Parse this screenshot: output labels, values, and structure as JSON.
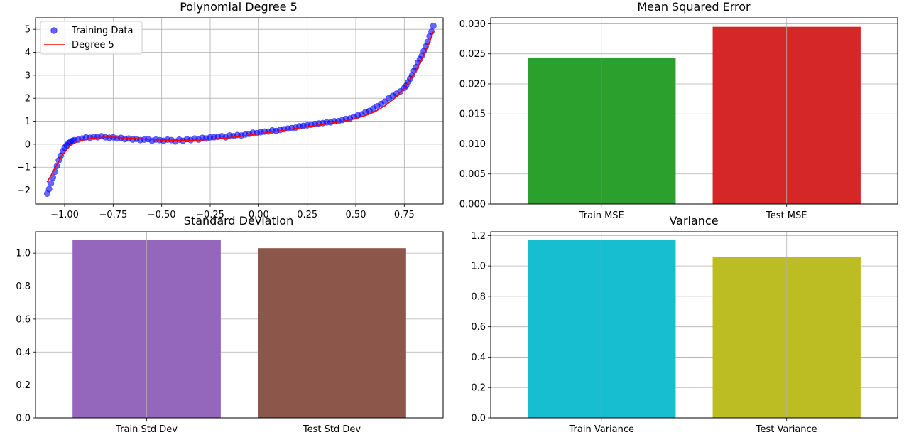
{
  "chart_data": [
    {
      "type": "scatter",
      "title": "Polynomial Degree 5",
      "xlabel": "",
      "ylabel": "",
      "xlim": [
        -1.15,
        0.95
      ],
      "ylim": [
        -2.6,
        5.5
      ],
      "xticks": [
        -1.0,
        -0.75,
        -0.5,
        -0.25,
        0.0,
        0.25,
        0.5,
        0.75
      ],
      "xtick_labels": [
        "−1.00",
        "−0.75",
        "−0.50",
        "−0.25",
        "0.00",
        "0.25",
        "0.50",
        "0.75"
      ],
      "yticks": [
        -2,
        -1,
        0,
        1,
        2,
        3,
        4,
        5
      ],
      "ytick_labels": [
        "−2",
        "−1",
        "0",
        "1",
        "2",
        "3",
        "4",
        "5"
      ],
      "grid": true,
      "legend_position": "top-left",
      "series": [
        {
          "name": "Training Data",
          "kind": "scatter",
          "color": "#0000ff",
          "x": [
            -1.09,
            -1.08,
            -1.07,
            -1.06,
            -1.05,
            -1.04,
            -1.03,
            -1.02,
            -1.01,
            -1.0,
            -0.99,
            -0.98,
            -0.97,
            -0.96,
            -0.95,
            -0.93,
            -0.91,
            -0.89,
            -0.87,
            -0.85,
            -0.83,
            -0.81,
            -0.79,
            -0.77,
            -0.75,
            -0.73,
            -0.71,
            -0.69,
            -0.67,
            -0.65,
            -0.63,
            -0.61,
            -0.59,
            -0.57,
            -0.55,
            -0.53,
            -0.51,
            -0.49,
            -0.47,
            -0.45,
            -0.43,
            -0.41,
            -0.39,
            -0.37,
            -0.35,
            -0.33,
            -0.31,
            -0.29,
            -0.27,
            -0.25,
            -0.23,
            -0.21,
            -0.19,
            -0.17,
            -0.15,
            -0.13,
            -0.11,
            -0.09,
            -0.07,
            -0.05,
            -0.03,
            -0.01,
            0.01,
            0.03,
            0.05,
            0.07,
            0.09,
            0.11,
            0.13,
            0.15,
            0.17,
            0.19,
            0.21,
            0.23,
            0.25,
            0.27,
            0.29,
            0.31,
            0.33,
            0.35,
            0.37,
            0.39,
            0.41,
            0.43,
            0.45,
            0.47,
            0.49,
            0.51,
            0.53,
            0.55,
            0.57,
            0.59,
            0.61,
            0.63,
            0.65,
            0.67,
            0.69,
            0.71,
            0.73,
            0.75,
            0.76,
            0.77,
            0.78,
            0.79,
            0.8,
            0.81,
            0.82,
            0.83,
            0.84,
            0.85,
            0.86,
            0.87,
            0.88,
            0.89,
            0.9
          ],
          "y": [
            -2.15,
            -1.95,
            -1.7,
            -1.45,
            -1.2,
            -0.95,
            -0.7,
            -0.5,
            -0.3,
            -0.15,
            -0.05,
            0.05,
            0.1,
            0.15,
            0.18,
            0.2,
            0.25,
            0.3,
            0.28,
            0.32,
            0.3,
            0.35,
            0.3,
            0.28,
            0.3,
            0.25,
            0.28,
            0.22,
            0.25,
            0.2,
            0.23,
            0.18,
            0.2,
            0.22,
            0.15,
            0.2,
            0.18,
            0.15,
            0.2,
            0.18,
            0.12,
            0.2,
            0.15,
            0.22,
            0.18,
            0.25,
            0.2,
            0.28,
            0.25,
            0.3,
            0.3,
            0.32,
            0.35,
            0.3,
            0.38,
            0.35,
            0.4,
            0.38,
            0.42,
            0.45,
            0.5,
            0.48,
            0.52,
            0.55,
            0.55,
            0.6,
            0.58,
            0.62,
            0.65,
            0.68,
            0.7,
            0.72,
            0.78,
            0.8,
            0.82,
            0.85,
            0.88,
            0.9,
            0.92,
            0.95,
            0.95,
            1.0,
            1.0,
            1.05,
            1.1,
            1.12,
            1.2,
            1.25,
            1.3,
            1.4,
            1.45,
            1.55,
            1.65,
            1.75,
            1.85,
            2.0,
            2.1,
            2.2,
            2.3,
            2.45,
            2.55,
            2.7,
            2.85,
            3.0,
            3.2,
            3.35,
            3.55,
            3.7,
            3.85,
            4.05,
            4.25,
            4.45,
            4.7,
            4.9,
            5.15
          ]
        },
        {
          "name": "Degree 5",
          "kind": "line",
          "color": "#ff0000",
          "x": [
            -1.09,
            -1.05,
            -1.01,
            -0.97,
            -0.93,
            -0.89,
            -0.85,
            -0.8,
            -0.75,
            -0.7,
            -0.6,
            -0.5,
            -0.4,
            -0.3,
            -0.2,
            -0.1,
            0.0,
            0.1,
            0.2,
            0.3,
            0.4,
            0.45,
            0.5,
            0.55,
            0.6,
            0.65,
            0.7,
            0.75,
            0.78,
            0.8,
            0.82,
            0.84,
            0.86,
            0.88,
            0.9
          ],
          "y": [
            -1.65,
            -1.05,
            -0.45,
            -0.05,
            0.13,
            0.22,
            0.27,
            0.3,
            0.3,
            0.28,
            0.23,
            0.18,
            0.16,
            0.18,
            0.24,
            0.33,
            0.45,
            0.57,
            0.7,
            0.82,
            0.95,
            1.02,
            1.12,
            1.25,
            1.42,
            1.67,
            2.0,
            2.45,
            2.8,
            3.05,
            3.35,
            3.7,
            4.05,
            4.45,
            4.9
          ]
        }
      ]
    },
    {
      "type": "bar",
      "title": "Mean Squared Error",
      "xlabel": "",
      "ylabel": "",
      "categories": [
        "Train MSE",
        "Test MSE"
      ],
      "values": [
        0.0243,
        0.0295
      ],
      "colors": [
        "#2ca02c",
        "#d62728"
      ],
      "ylim": [
        0,
        0.031
      ],
      "yticks": [
        0,
        0.005,
        0.01,
        0.015,
        0.02,
        0.025,
        0.03
      ],
      "ytick_labels": [
        "0.000",
        "0.005",
        "0.010",
        "0.015",
        "0.020",
        "0.025",
        "0.030"
      ],
      "grid": true
    },
    {
      "type": "bar",
      "title": "Standard Deviation",
      "xlabel": "",
      "ylabel": "",
      "categories": [
        "Train Std Dev",
        "Test Std Dev"
      ],
      "values": [
        1.08,
        1.03
      ],
      "colors": [
        "#9467bd",
        "#8c564b"
      ],
      "ylim": [
        0,
        1.13
      ],
      "yticks": [
        0,
        0.2,
        0.4,
        0.6,
        0.8,
        1.0
      ],
      "ytick_labels": [
        "0.0",
        "0.2",
        "0.4",
        "0.6",
        "0.8",
        "1.0"
      ],
      "grid": true
    },
    {
      "type": "bar",
      "title": "Variance",
      "xlabel": "",
      "ylabel": "",
      "categories": [
        "Train Variance",
        "Test Variance"
      ],
      "values": [
        1.17,
        1.06
      ],
      "colors": [
        "#17becf",
        "#bcbd22"
      ],
      "ylim": [
        0,
        1.225
      ],
      "yticks": [
        0,
        0.2,
        0.4,
        0.6,
        0.8,
        1.0,
        1.2
      ],
      "ytick_labels": [
        "0.0",
        "0.2",
        "0.4",
        "0.6",
        "0.8",
        "1.0",
        "1.2"
      ],
      "grid": true
    }
  ]
}
